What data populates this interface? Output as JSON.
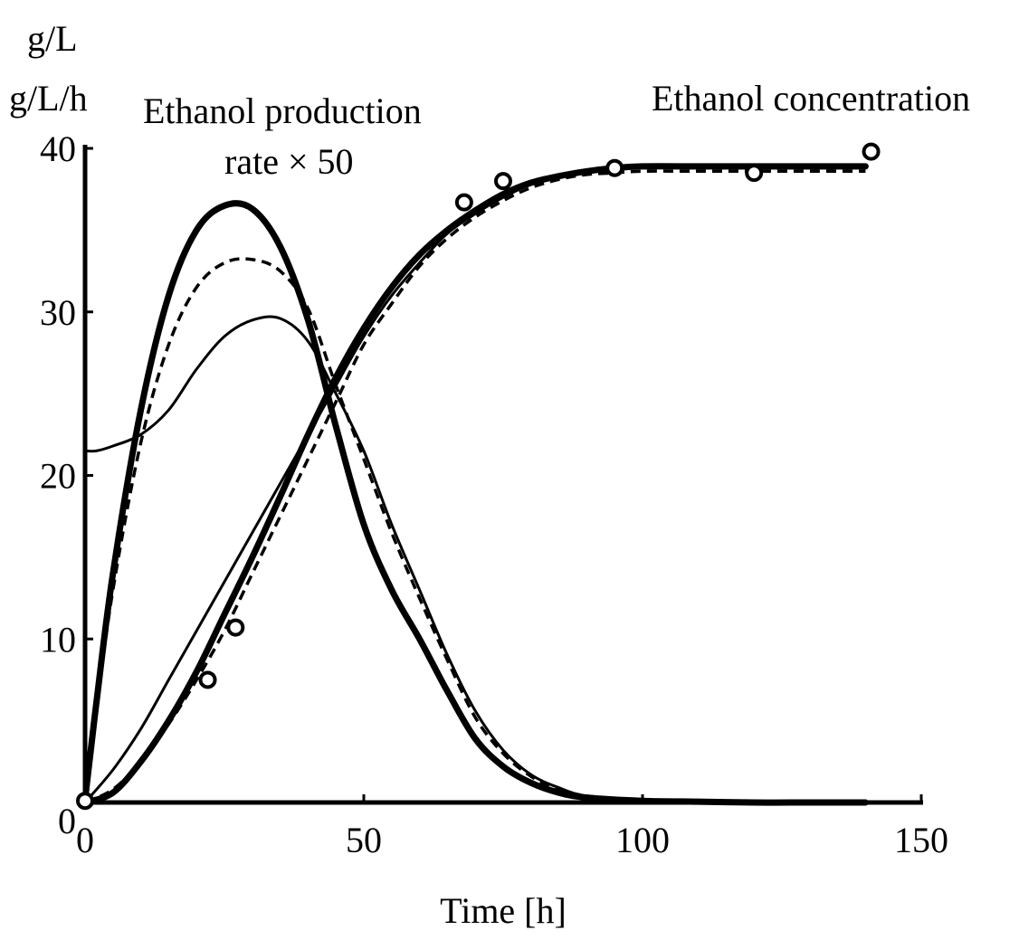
{
  "chart_data": {
    "type": "line",
    "xlabel": "Time [h]",
    "ylabel_lines": [
      "g/L",
      "g/L/h"
    ],
    "annotations": {
      "production_rate": [
        "Ethanol production",
        "rate × 50"
      ],
      "concentration": "Ethanol concentration"
    },
    "xlim": [
      0,
      150
    ],
    "ylim": [
      0,
      40
    ],
    "x_ticks": [
      "0",
      "50",
      "100",
      "150"
    ],
    "y_ticks": [
      "0",
      "10",
      "20",
      "30",
      "40"
    ],
    "grid": false,
    "series": [
      {
        "style": "thick",
        "x": [
          0,
          2,
          5,
          10,
          15,
          20,
          25,
          30,
          35,
          40,
          45,
          50,
          55,
          60,
          65,
          70,
          75,
          80,
          85,
          90,
          100,
          110,
          120,
          130,
          140
        ],
        "values": [
          0.2,
          6,
          14,
          24,
          31,
          35,
          36.5,
          36.3,
          34,
          29.5,
          23,
          17,
          13,
          10,
          6.8,
          3.9,
          2.2,
          1.2,
          0.6,
          0.3,
          0.1,
          0.05,
          0,
          0,
          0
        ]
      },
      {
        "style": "dash",
        "x": [
          0,
          2,
          5,
          10,
          15,
          20,
          25,
          30,
          35,
          40,
          45,
          50,
          55,
          60,
          65,
          70,
          75,
          80,
          85,
          90,
          100,
          110,
          120,
          130,
          140
        ],
        "values": [
          0.2,
          5.5,
          13,
          22,
          28,
          31.5,
          33,
          33.2,
          32.5,
          30.2,
          25.5,
          21,
          16.5,
          12.5,
          8.7,
          5.2,
          3,
          1.6,
          0.8,
          0.4,
          0.15,
          0.05,
          0,
          0,
          0
        ]
      },
      {
        "style": "thin",
        "x": [
          0,
          2,
          5,
          10,
          15,
          20,
          25,
          30,
          35,
          40,
          45,
          50,
          55,
          60,
          65,
          70,
          75,
          80,
          85,
          90,
          100,
          110,
          120,
          130,
          140
        ],
        "values": [
          21.5,
          21.5,
          21.8,
          22.5,
          24,
          26.5,
          28.5,
          29.5,
          29.6,
          28.2,
          25,
          21.5,
          17,
          13,
          9,
          5.6,
          3.2,
          1.7,
          0.9,
          0.4,
          0.15,
          0.05,
          0,
          0,
          0
        ]
      },
      {
        "style": "thick",
        "x": [
          0,
          5,
          10,
          15,
          20,
          25,
          30,
          35,
          40,
          45,
          50,
          55,
          60,
          65,
          70,
          75,
          80,
          85,
          90,
          95,
          100,
          110,
          120,
          130,
          140
        ],
        "values": [
          0,
          0.6,
          2.5,
          5,
          8,
          11.5,
          15,
          18.7,
          22.5,
          26,
          29,
          31.5,
          33.5,
          35,
          36.2,
          37.2,
          37.9,
          38.3,
          38.6,
          38.8,
          38.9,
          38.9,
          38.9,
          38.9,
          38.9
        ]
      },
      {
        "style": "thin",
        "x": [
          0,
          5,
          10,
          15,
          20,
          25,
          30,
          35,
          40,
          45,
          50,
          55,
          60,
          65,
          70,
          75,
          80,
          85,
          90,
          95,
          100,
          110,
          120,
          130,
          140
        ],
        "values": [
          0,
          2,
          4.5,
          7.5,
          10.5,
          13.5,
          16.5,
          19.5,
          22.5,
          25.5,
          28.5,
          31,
          33,
          34.8,
          36,
          37,
          37.8,
          38.2,
          38.5,
          38.7,
          38.8,
          38.8,
          38.8,
          38.8,
          38.8
        ]
      },
      {
        "style": "dash",
        "x": [
          0,
          5,
          10,
          15,
          20,
          25,
          30,
          35,
          40,
          45,
          50,
          55,
          60,
          65,
          70,
          75,
          80,
          85,
          90,
          95,
          100,
          110,
          120,
          130,
          140
        ],
        "values": [
          0,
          0.8,
          2.5,
          4.8,
          7.5,
          10.5,
          14,
          17.5,
          21,
          24.5,
          28,
          30.5,
          32.8,
          34.5,
          35.8,
          36.8,
          37.6,
          38.1,
          38.4,
          38.5,
          38.6,
          38.6,
          38.6,
          38.6,
          38.6
        ]
      },
      {
        "style": "points",
        "x": [
          0,
          22,
          27,
          68,
          75,
          95,
          120,
          141
        ],
        "values": [
          0.1,
          7.5,
          10.7,
          36.7,
          38,
          38.8,
          38.5,
          39.8
        ]
      }
    ]
  }
}
